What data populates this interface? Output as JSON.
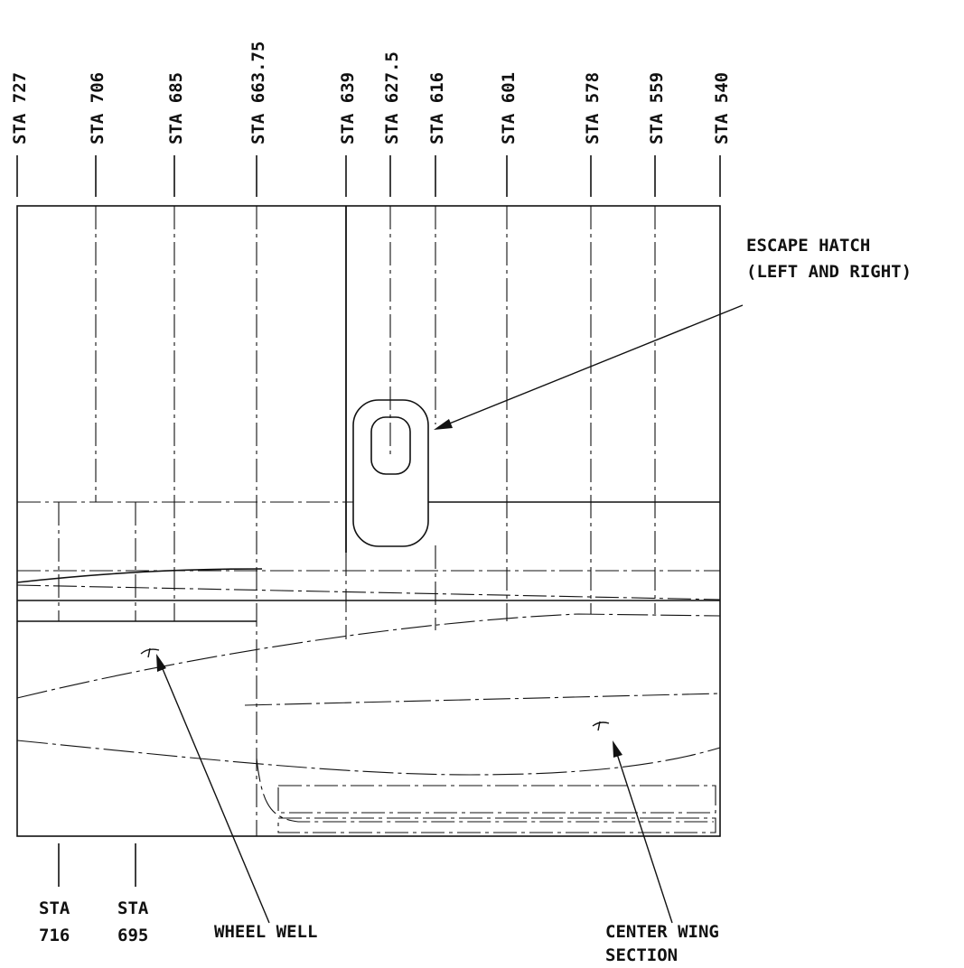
{
  "stations_top": [
    "STA 727",
    "STA 706",
    "STA 685",
    "STA 663.75",
    "STA 639",
    "STA 627.5",
    "STA 616",
    "STA 601",
    "STA 578",
    "STA 559",
    "STA 540"
  ],
  "stations_bottom": [
    {
      "line1": "STA",
      "line2": "716"
    },
    {
      "line1": "STA",
      "line2": "695"
    }
  ],
  "callouts": {
    "escape_hatch": {
      "line1": "ESCAPE HATCH",
      "line2": "(LEFT AND RIGHT)"
    },
    "wheel_well": "WHEEL WELL",
    "center_wing": {
      "line1": "CENTER WING",
      "line2": "SECTION"
    }
  },
  "line_color": "#111111"
}
